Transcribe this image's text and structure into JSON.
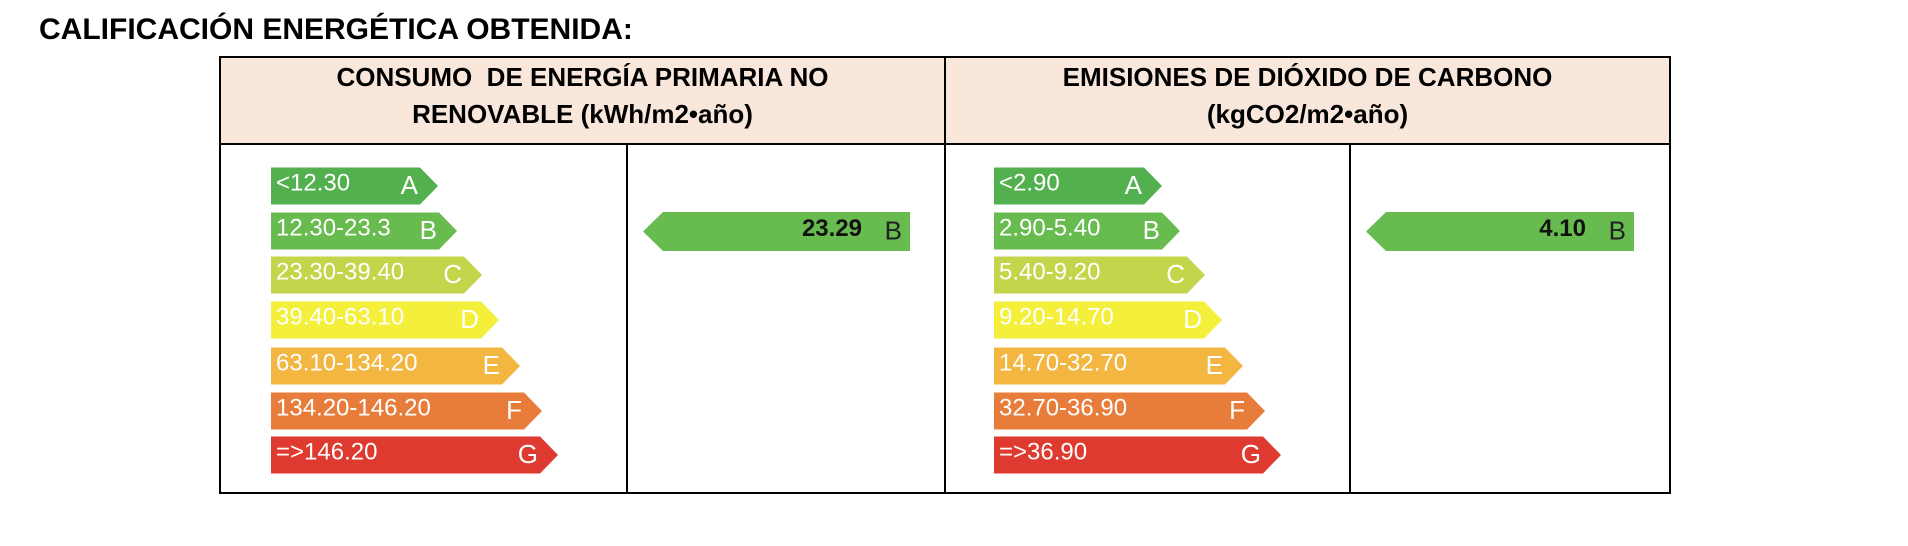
{
  "title": "CALIFICACIÓN ENERGÉTICA OBTENIDA:",
  "panels": [
    {
      "header": [
        "CONSUMO  DE ENERGÍA PRIMARIA NO",
        "RENOVABLE (kWh/m2•año)"
      ],
      "scale": [
        {
          "range": "<12.30",
          "letter": "A",
          "color": "#52b04e"
        },
        {
          "range": "12.30-23.3",
          "letter": "B",
          "color": "#67bb4f"
        },
        {
          "range": "23.30-39.40",
          "letter": "C",
          "color": "#c3d54a"
        },
        {
          "range": "39.40-63.10",
          "letter": "D",
          "color": "#f3ef3a"
        },
        {
          "range": "63.10-134.20",
          "letter": "E",
          "color": "#f2b641"
        },
        {
          "range": "134.20-146.20",
          "letter": "F",
          "color": "#e87c3a"
        },
        {
          "range": "=>146.20",
          "letter": "G",
          "color": "#df3a30"
        }
      ],
      "result": {
        "value": "23.29",
        "letter": "B",
        "color": "#67bb4f"
      }
    },
    {
      "header": [
        "EMISIONES DE DIÓXIDO DE CARBONO",
        "(kgCO2/m2•año)"
      ],
      "scale": [
        {
          "range": "<2.90",
          "letter": "A",
          "color": "#52b04e"
        },
        {
          "range": "2.90-5.40",
          "letter": "B",
          "color": "#67bb4f"
        },
        {
          "range": "5.40-9.20",
          "letter": "C",
          "color": "#c3d54a"
        },
        {
          "range": "9.20-14.70",
          "letter": "D",
          "color": "#f3ef3a"
        },
        {
          "range": "14.70-32.70",
          "letter": "E",
          "color": "#f2b641"
        },
        {
          "range": "32.70-36.90",
          "letter": "F",
          "color": "#e87c3a"
        },
        {
          "range": "=>36.90",
          "letter": "G",
          "color": "#df3a30"
        }
      ],
      "result": {
        "value": "4.10",
        "letter": "B",
        "color": "#67bb4f"
      }
    }
  ]
}
